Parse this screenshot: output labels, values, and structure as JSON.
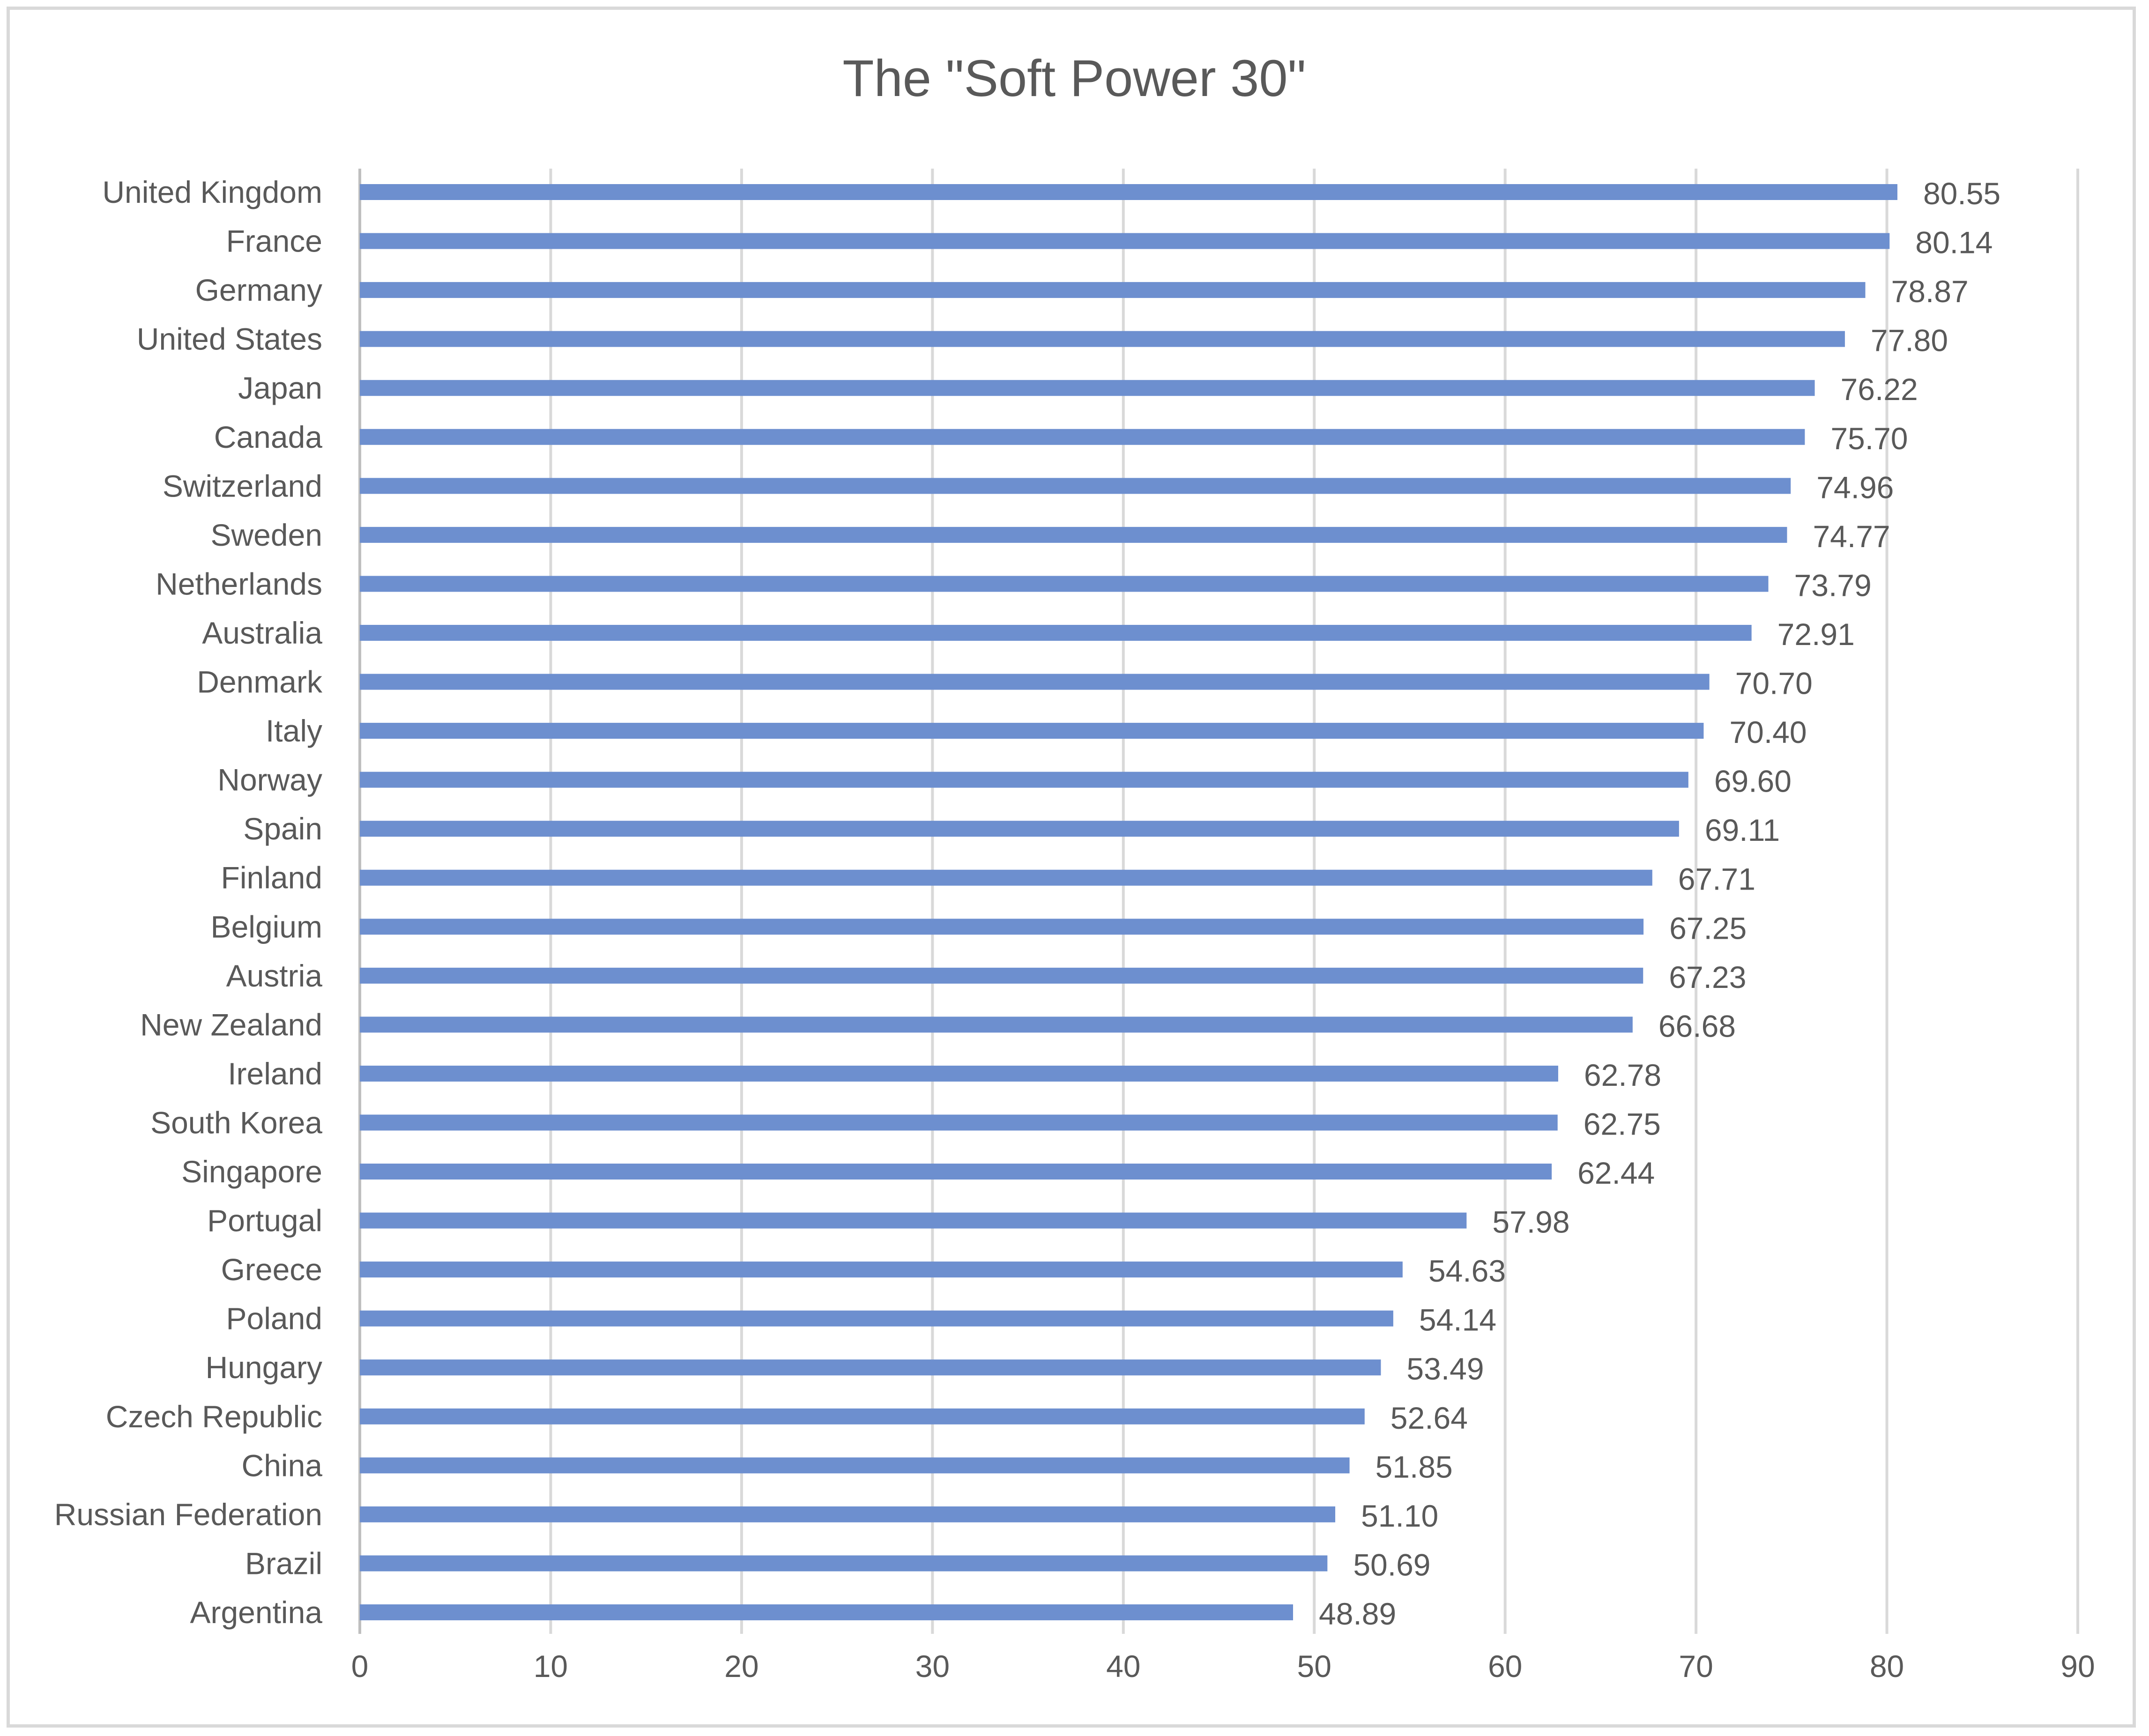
{
  "chart_data": {
    "type": "bar",
    "orientation": "horizontal",
    "title": "The \"Soft Power 30\"",
    "categories": [
      "United Kingdom",
      "France",
      "Germany",
      "United States",
      "Japan",
      "Canada",
      "Switzerland",
      "Sweden",
      "Netherlands",
      "Australia",
      "Denmark",
      "Italy",
      "Norway",
      "Spain",
      "Finland",
      "Belgium",
      "Austria",
      "New Zealand",
      "Ireland",
      "South Korea",
      "Singapore",
      "Portugal",
      "Greece",
      "Poland",
      "Hungary",
      "Czech Republic",
      "China",
      "Russian Federation",
      "Brazil",
      "Argentina"
    ],
    "values": [
      80.55,
      80.14,
      78.87,
      77.8,
      76.22,
      75.7,
      74.96,
      74.77,
      73.79,
      72.91,
      70.7,
      70.4,
      69.6,
      69.11,
      67.71,
      67.25,
      67.23,
      66.68,
      62.78,
      62.75,
      62.44,
      57.98,
      54.63,
      54.14,
      53.49,
      52.64,
      51.85,
      51.1,
      50.69,
      48.89
    ],
    "data_labels": [
      "80.55",
      "80.14",
      "78.87",
      "77.80",
      "76.22",
      "75.70",
      "74.96",
      "74.77",
      "73.79",
      "72.91",
      "70.70",
      "70.40",
      "69.60",
      "69.11",
      "67.71",
      "67.25",
      "67.23",
      "66.68",
      "62.78",
      "62.75",
      "62.44",
      "57.98",
      "54.63",
      "54.14",
      "53.49",
      "52.64",
      "51.85",
      "51.10",
      "50.69",
      "48.89"
    ],
    "xlim": [
      0,
      90
    ],
    "x_ticks": [
      "0",
      "10",
      "20",
      "30",
      "40",
      "50",
      "60",
      "70",
      "80",
      "90"
    ],
    "grid": "vertical",
    "legend": "none",
    "xlabel": "",
    "ylabel": "",
    "bar_color": "#6d8fcf"
  }
}
